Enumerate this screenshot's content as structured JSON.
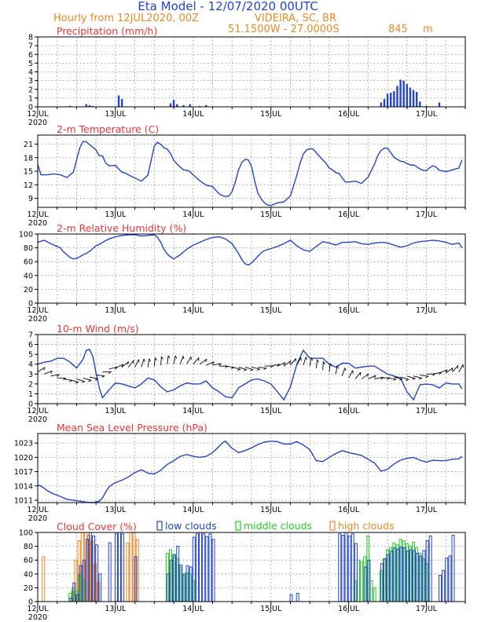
{
  "header": {
    "title": "Eta Model - 12/07/2020 00UTC",
    "subtitle_left": "Hourly from 12JUL2020, 00Z",
    "location": "VIDEIRA, SC, BR",
    "coords": "51.1500W - 27.0000S",
    "elevation": "845",
    "elevation_unit": "m"
  },
  "colors": {
    "title": "#2244cc",
    "subtitle": "#ee8822",
    "panel_title": "#ee3333",
    "line": "#2244cc",
    "low": "#2244cc",
    "mid": "#22cc22",
    "high": "#ee8822",
    "wind": "#000000"
  },
  "x_axis": {
    "day_labels": [
      "12JUL",
      "13JUL",
      "14JUL",
      "15JUL",
      "16JUL",
      "17JUL"
    ],
    "year_label": "2020",
    "hours_total": 132
  },
  "chart_data": [
    {
      "id": "precip",
      "type": "bar",
      "title": "Precipitation (mm/h)",
      "ylim": [
        0,
        8
      ],
      "yticks": [
        0,
        1,
        2,
        3,
        4,
        5,
        6,
        7,
        8
      ],
      "hours": [
        10,
        15,
        16,
        17,
        25,
        26,
        41,
        42,
        43,
        45,
        47,
        50,
        52,
        106,
        107,
        108,
        109,
        110,
        111,
        112,
        113,
        114,
        115,
        116,
        117,
        118,
        120,
        124
      ],
      "values": [
        0.1,
        0.3,
        0.2,
        0.1,
        1.3,
        0.9,
        0.4,
        0.8,
        0.3,
        0.2,
        0.3,
        0.1,
        0.2,
        0.5,
        0.9,
        1.5,
        1.6,
        1.8,
        2.4,
        3.1,
        3.0,
        2.6,
        2.2,
        1.9,
        1.7,
        0.6,
        0.1,
        0.5
      ]
    },
    {
      "id": "temp",
      "type": "line",
      "title": "2-m Temperature (C)",
      "ylim": [
        7,
        23
      ],
      "yticks": [
        9,
        12,
        15,
        18,
        21
      ],
      "x": [
        0,
        1,
        3,
        5,
        7,
        9,
        11,
        13,
        14,
        15,
        16,
        17,
        18,
        19,
        20,
        21,
        22,
        23,
        24,
        25,
        26,
        27,
        28,
        30,
        32,
        34,
        36,
        37,
        38,
        39,
        40,
        41,
        42,
        43,
        44,
        45,
        46,
        47,
        48,
        50,
        52,
        54,
        56,
        57,
        58,
        59,
        60,
        61,
        62,
        63,
        64,
        65,
        66,
        67,
        68,
        69,
        70,
        71,
        72,
        73,
        74,
        76,
        78,
        80,
        81,
        82,
        83,
        84,
        85,
        86,
        87,
        88,
        89,
        90,
        91,
        92,
        93,
        94,
        95,
        96,
        97,
        98,
        100,
        102,
        104,
        105,
        106,
        107,
        108,
        109,
        110,
        111,
        112,
        113,
        114,
        115,
        116,
        117,
        118,
        119,
        120,
        121,
        122,
        123,
        124,
        126,
        128,
        130,
        131
      ],
      "y": [
        16.5,
        14.2,
        14.2,
        14.4,
        14.2,
        13.6,
        14.8,
        20.2,
        21.6,
        21.5,
        20.9,
        20.3,
        19.7,
        18.4,
        18.4,
        16.8,
        16.2,
        16.2,
        16.3,
        15.5,
        14.8,
        14.6,
        14.2,
        13.5,
        12.8,
        14.1,
        20.6,
        21.4,
        20.9,
        20.2,
        19.9,
        18.9,
        17.4,
        16.6,
        15.9,
        15.3,
        15.2,
        14.9,
        14.2,
        12.9,
        11.9,
        11.6,
        10.0,
        9.6,
        9.4,
        9.5,
        10.5,
        12.6,
        15.3,
        16.9,
        17.6,
        17.5,
        16.1,
        12.8,
        10.1,
        8.9,
        8.0,
        7.5,
        7.4,
        7.7,
        8.0,
        8.2,
        9.5,
        14.1,
        16.8,
        18.8,
        19.7,
        20.0,
        19.9,
        19.1,
        18.3,
        17.5,
        16.8,
        15.7,
        15.3,
        14.7,
        14.5,
        13.5,
        12.6,
        12.6,
        12.7,
        12.8,
        12.3,
        13.7,
        16.6,
        18.5,
        19.6,
        20.1,
        20.1,
        19.1,
        18.1,
        17.6,
        17.2,
        17.1,
        16.7,
        16.4,
        16.4,
        16.0,
        15.5,
        15.2,
        15.1,
        15.8,
        16.2,
        15.9,
        15.2,
        14.9,
        15.3,
        15.7,
        17.5
      ]
    },
    {
      "id": "rh",
      "type": "line",
      "title": "2-m Relative Humidity (%)",
      "ylim": [
        0,
        100
      ],
      "yticks": [
        0,
        20,
        40,
        60,
        80,
        100
      ],
      "x": [
        0,
        2,
        4,
        6,
        7,
        8,
        9,
        10,
        11,
        12,
        13,
        14,
        15,
        16,
        17,
        18,
        19,
        20,
        22,
        24,
        26,
        28,
        30,
        32,
        34,
        36,
        37,
        38,
        39,
        40,
        41,
        42,
        44,
        46,
        48,
        50,
        52,
        54,
        56,
        58,
        60,
        62,
        63,
        64,
        65,
        66,
        67,
        68,
        69,
        70,
        72,
        74,
        76,
        78,
        80,
        82,
        84,
        86,
        88,
        90,
        92,
        94,
        96,
        98,
        100,
        102,
        104,
        106,
        108,
        110,
        112,
        114,
        116,
        118,
        120,
        122,
        124,
        126,
        128,
        130,
        131
      ],
      "y": [
        88,
        91,
        86,
        82,
        80,
        74,
        70,
        66,
        64,
        65,
        67,
        70,
        72,
        75,
        79,
        83,
        85,
        88,
        93,
        96,
        98,
        99,
        99,
        97,
        98,
        99,
        95,
        88,
        78,
        71,
        67,
        64,
        70,
        78,
        84,
        88,
        92,
        95,
        96,
        93,
        86,
        72,
        63,
        57,
        55,
        58,
        63,
        68,
        73,
        76,
        79,
        82,
        86,
        91,
        83,
        77,
        75,
        82,
        89,
        87,
        84,
        88,
        88,
        89,
        86,
        85,
        87,
        88,
        87,
        84,
        81,
        83,
        87,
        89,
        90,
        91,
        90,
        88,
        85,
        87,
        80
      ]
    },
    {
      "id": "wind",
      "type": "line",
      "title": "10-m Wind (m/s)",
      "ylim": [
        0,
        7
      ],
      "yticks": [
        0,
        1,
        2,
        3,
        4,
        5,
        6,
        7
      ],
      "x": [
        0,
        2,
        4,
        6,
        8,
        10,
        12,
        14,
        15,
        16,
        17,
        18,
        19,
        20,
        22,
        24,
        26,
        28,
        30,
        32,
        34,
        36,
        38,
        40,
        42,
        44,
        46,
        48,
        50,
        52,
        54,
        56,
        58,
        60,
        62,
        64,
        66,
        68,
        70,
        72,
        74,
        76,
        78,
        80,
        82,
        84,
        86,
        88,
        90,
        92,
        94,
        96,
        98,
        100,
        102,
        104,
        106,
        108,
        110,
        112,
        114,
        116,
        118,
        120,
        122,
        124,
        126,
        128,
        130,
        131
      ],
      "y": [
        4.0,
        4.2,
        4.3,
        4.6,
        4.6,
        4.2,
        3.6,
        4.5,
        5.4,
        5.5,
        4.8,
        3.1,
        1.6,
        0.6,
        1.4,
        2.1,
        2.0,
        1.8,
        1.6,
        2.0,
        2.6,
        2.4,
        1.7,
        1.2,
        1.4,
        1.8,
        2.1,
        2.0,
        2.0,
        2.3,
        1.6,
        1.2,
        0.7,
        0.6,
        1.6,
        2.0,
        2.4,
        2.5,
        2.3,
        2.0,
        1.2,
        0.4,
        1.7,
        4.0,
        5.4,
        4.6,
        4.6,
        4.6,
        4.0,
        3.7,
        4.1,
        4.1,
        3.6,
        3.7,
        3.8,
        3.8,
        3.4,
        3.0,
        2.8,
        2.6,
        1.2,
        0.4,
        1.9,
        2.0,
        1.9,
        1.6,
        2.1,
        2.0,
        2.0,
        1.5
      ],
      "barb_y": [
        3.2,
        3.0,
        2.8,
        2.6,
        2.5,
        2.4,
        2.5,
        2.6,
        2.7,
        2.9,
        3.2,
        3.5,
        3.6,
        3.7,
        3.7,
        3.7,
        3.7,
        3.7,
        3.8,
        3.9,
        4.0,
        4.0,
        4.0,
        4.0,
        4.0,
        4.0,
        3.9,
        3.9,
        3.8,
        3.8,
        3.7,
        3.7,
        3.7,
        3.7,
        3.7,
        3.8,
        3.8,
        3.8,
        3.8,
        3.9,
        3.9,
        3.9,
        3.8,
        3.6,
        3.4,
        3.2,
        3.0,
        2.8,
        2.6,
        2.5,
        2.5,
        2.5,
        2.5,
        2.6,
        2.6,
        2.7,
        2.7,
        2.8,
        2.8,
        2.9,
        3.0,
        3.0,
        3.1,
        3.1,
        3.2,
        3.2
      ]
    },
    {
      "id": "mslp",
      "type": "line",
      "title": "Mean Sea Level Pressure (hPa)",
      "ylim": [
        1010.5,
        1025
      ],
      "yticks": [
        1011,
        1014,
        1017,
        1020,
        1023
      ],
      "x": [
        0,
        1,
        3,
        5,
        7,
        9,
        11,
        13,
        15,
        17,
        19,
        20,
        21,
        22,
        23,
        24,
        26,
        28,
        30,
        32,
        34,
        36,
        38,
        40,
        42,
        44,
        46,
        48,
        50,
        52,
        54,
        56,
        57,
        58,
        59,
        60,
        62,
        64,
        66,
        68,
        70,
        72,
        74,
        76,
        78,
        80,
        82,
        84,
        86,
        88,
        90,
        92,
        94,
        96,
        98,
        100,
        102,
        104,
        106,
        108,
        110,
        112,
        114,
        116,
        118,
        120,
        122,
        124,
        126,
        128,
        130,
        131
      ],
      "y": [
        1014.2,
        1014.0,
        1013.0,
        1012.3,
        1011.8,
        1011.2,
        1011.0,
        1010.8,
        1010.6,
        1010.5,
        1010.8,
        1011.5,
        1012.7,
        1013.8,
        1014.3,
        1014.7,
        1015.2,
        1015.9,
        1016.8,
        1017.4,
        1016.7,
        1016.5,
        1017.3,
        1018.5,
        1019.3,
        1020.2,
        1020.6,
        1020.2,
        1020.0,
        1020.2,
        1021.0,
        1022.3,
        1023.0,
        1023.4,
        1022.6,
        1021.9,
        1021.0,
        1021.4,
        1022.0,
        1022.7,
        1023.2,
        1023.4,
        1023.3,
        1022.8,
        1022.8,
        1023.3,
        1022.6,
        1021.6,
        1019.3,
        1019.1,
        1020.0,
        1020.8,
        1021.4,
        1021.0,
        1020.7,
        1020.4,
        1019.6,
        1018.8,
        1017.1,
        1017.5,
        1018.6,
        1019.4,
        1019.8,
        1020.0,
        1019.4,
        1019.0,
        1019.4,
        1019.3,
        1019.3,
        1019.6,
        1019.7,
        1020.2
      ]
    },
    {
      "id": "cloud",
      "type": "bar",
      "title": "Cloud Cover (%)",
      "ylim": [
        0,
        100
      ],
      "yticks": [
        0,
        20,
        40,
        60,
        80,
        100
      ],
      "legend": [
        "low clouds",
        "middle clouds",
        "high clouds"
      ],
      "low": [
        [
          10,
          5
        ],
        [
          11,
          27
        ],
        [
          12,
          10
        ],
        [
          13,
          52
        ],
        [
          14,
          60
        ],
        [
          15,
          90
        ],
        [
          16,
          100
        ],
        [
          17,
          95
        ],
        [
          18,
          82
        ],
        [
          19,
          40
        ],
        [
          22,
          85
        ],
        [
          24,
          98
        ],
        [
          25,
          100
        ],
        [
          26,
          98
        ],
        [
          30,
          65
        ],
        [
          40,
          40
        ],
        [
          41,
          60
        ],
        [
          42,
          68
        ],
        [
          43,
          80
        ],
        [
          44,
          53
        ],
        [
          45,
          40
        ],
        [
          46,
          52
        ],
        [
          47,
          50
        ],
        [
          48,
          93
        ],
        [
          49,
          98
        ],
        [
          50,
          100
        ],
        [
          51,
          98
        ],
        [
          52,
          94
        ],
        [
          53,
          98
        ],
        [
          54,
          90
        ],
        [
          78,
          10
        ],
        [
          80,
          12
        ],
        [
          93,
          98
        ],
        [
          94,
          96
        ],
        [
          95,
          100
        ],
        [
          96,
          95
        ],
        [
          97,
          98
        ],
        [
          98,
          84
        ],
        [
          101,
          50
        ],
        [
          102,
          60
        ],
        [
          106,
          55
        ],
        [
          107,
          62
        ],
        [
          108,
          68
        ],
        [
          109,
          73
        ],
        [
          110,
          78
        ],
        [
          111,
          76
        ],
        [
          112,
          79
        ],
        [
          113,
          78
        ],
        [
          114,
          73
        ],
        [
          115,
          75
        ],
        [
          116,
          74
        ],
        [
          117,
          70
        ],
        [
          118,
          66
        ],
        [
          119,
          74
        ],
        [
          120,
          88
        ],
        [
          121,
          95
        ],
        [
          124,
          38
        ],
        [
          125,
          45
        ],
        [
          126,
          63
        ],
        [
          127,
          66
        ],
        [
          128,
          96
        ]
      ],
      "mid": [
        [
          10,
          12
        ],
        [
          11,
          20
        ],
        [
          12,
          15
        ],
        [
          13,
          40
        ],
        [
          14,
          32
        ],
        [
          40,
          70
        ],
        [
          41,
          75
        ],
        [
          42,
          68
        ],
        [
          43,
          62
        ],
        [
          44,
          50
        ],
        [
          45,
          38
        ],
        [
          46,
          42
        ],
        [
          47,
          40
        ],
        [
          48,
          30
        ],
        [
          98,
          30
        ],
        [
          99,
          60
        ],
        [
          100,
          58
        ],
        [
          101,
          65
        ],
        [
          102,
          95
        ],
        [
          103,
          30
        ],
        [
          104,
          20
        ],
        [
          106,
          45
        ],
        [
          107,
          62
        ],
        [
          108,
          75
        ],
        [
          109,
          78
        ],
        [
          110,
          85
        ],
        [
          111,
          82
        ],
        [
          112,
          90
        ],
        [
          113,
          88
        ],
        [
          114,
          84
        ],
        [
          115,
          80
        ],
        [
          116,
          86
        ],
        [
          117,
          78
        ],
        [
          118,
          70
        ],
        [
          119,
          62
        ],
        [
          120,
          55
        ]
      ],
      "high": [
        [
          2,
          65
        ],
        [
          11,
          15
        ],
        [
          12,
          60
        ],
        [
          13,
          88
        ],
        [
          14,
          100
        ],
        [
          15,
          100
        ],
        [
          16,
          96
        ],
        [
          17,
          88
        ],
        [
          18,
          55
        ],
        [
          19,
          28
        ],
        [
          28,
          85
        ],
        [
          29,
          100
        ],
        [
          30,
          100
        ],
        [
          31,
          90
        ]
      ]
    }
  ]
}
